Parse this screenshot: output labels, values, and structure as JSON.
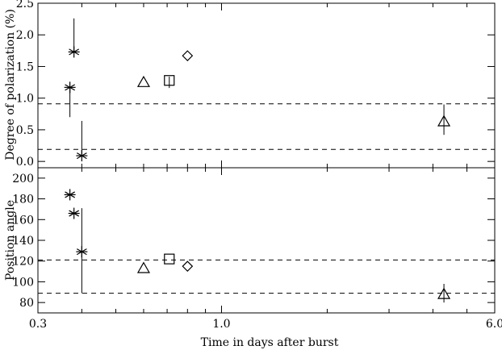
{
  "chart_data": [
    {
      "type": "scatter",
      "title": "",
      "xlabel": "",
      "ylabel": "Degree of polarization (%)",
      "x_scale": "log",
      "xlim": [
        0.3,
        6.0
      ],
      "ylim": [
        -0.1,
        2.5
      ],
      "y_ticks": [
        "0.0",
        "0.5",
        "1.0",
        "1.5",
        "2.0",
        "2.5"
      ],
      "reference_lines": [
        0.91,
        0.19
      ],
      "series": [
        {
          "marker": "asterisk",
          "points": [
            {
              "x": 0.37,
              "y": 1.17,
              "err_lo": 0.47,
              "err_hi": 0.0
            },
            {
              "x": 0.38,
              "y": 1.73,
              "err_lo": 0.0,
              "err_hi": 0.53
            },
            {
              "x": 0.4,
              "y": 0.09,
              "err_lo": 0.0,
              "err_hi": 0.55
            }
          ]
        },
        {
          "marker": "triangle",
          "points": [
            {
              "x": 0.6,
              "y": 1.25,
              "err_lo": 0.0,
              "err_hi": 0.0
            },
            {
              "x": 4.3,
              "y": 0.63,
              "err_lo": 0.21,
              "err_hi": 0.27
            }
          ]
        },
        {
          "marker": "square",
          "points": [
            {
              "x": 0.71,
              "y": 1.28,
              "err_lo": 0.12,
              "err_hi": 0.06
            }
          ]
        },
        {
          "marker": "diamond",
          "points": [
            {
              "x": 0.8,
              "y": 1.67,
              "err_lo": 0.0,
              "err_hi": 0.0
            }
          ]
        }
      ]
    },
    {
      "type": "scatter",
      "title": "",
      "xlabel": "Time in days after burst",
      "ylabel": "Position angle",
      "x_scale": "log",
      "xlim": [
        0.3,
        6.0
      ],
      "ylim": [
        70,
        210
      ],
      "y_ticks": [
        "80",
        "100",
        "120",
        "140",
        "160",
        "180",
        "200"
      ],
      "x_tick_labels": [
        {
          "x": 0.3,
          "label": "0.3"
        },
        {
          "x": 1.0,
          "label": "1.0"
        },
        {
          "x": 6.0,
          "label": "6.0"
        }
      ],
      "reference_lines": [
        121,
        89
      ],
      "series": [
        {
          "marker": "asterisk",
          "points": [
            {
              "x": 0.37,
              "y": 184,
              "err_lo": 0,
              "err_hi": 0
            },
            {
              "x": 0.38,
              "y": 166,
              "err_lo": 0,
              "err_hi": 0
            },
            {
              "x": 0.4,
              "y": 129,
              "err_lo": 40,
              "err_hi": 42
            }
          ]
        },
        {
          "marker": "triangle",
          "points": [
            {
              "x": 0.6,
              "y": 113,
              "err_lo": 0,
              "err_hi": 0
            },
            {
              "x": 4.3,
              "y": 88,
              "err_lo": 8,
              "err_hi": 10
            }
          ]
        },
        {
          "marker": "square",
          "points": [
            {
              "x": 0.71,
              "y": 122,
              "err_lo": 0,
              "err_hi": 0
            }
          ]
        },
        {
          "marker": "diamond",
          "points": [
            {
              "x": 0.8,
              "y": 115,
              "err_lo": 0,
              "err_hi": 0
            }
          ]
        }
      ]
    }
  ]
}
